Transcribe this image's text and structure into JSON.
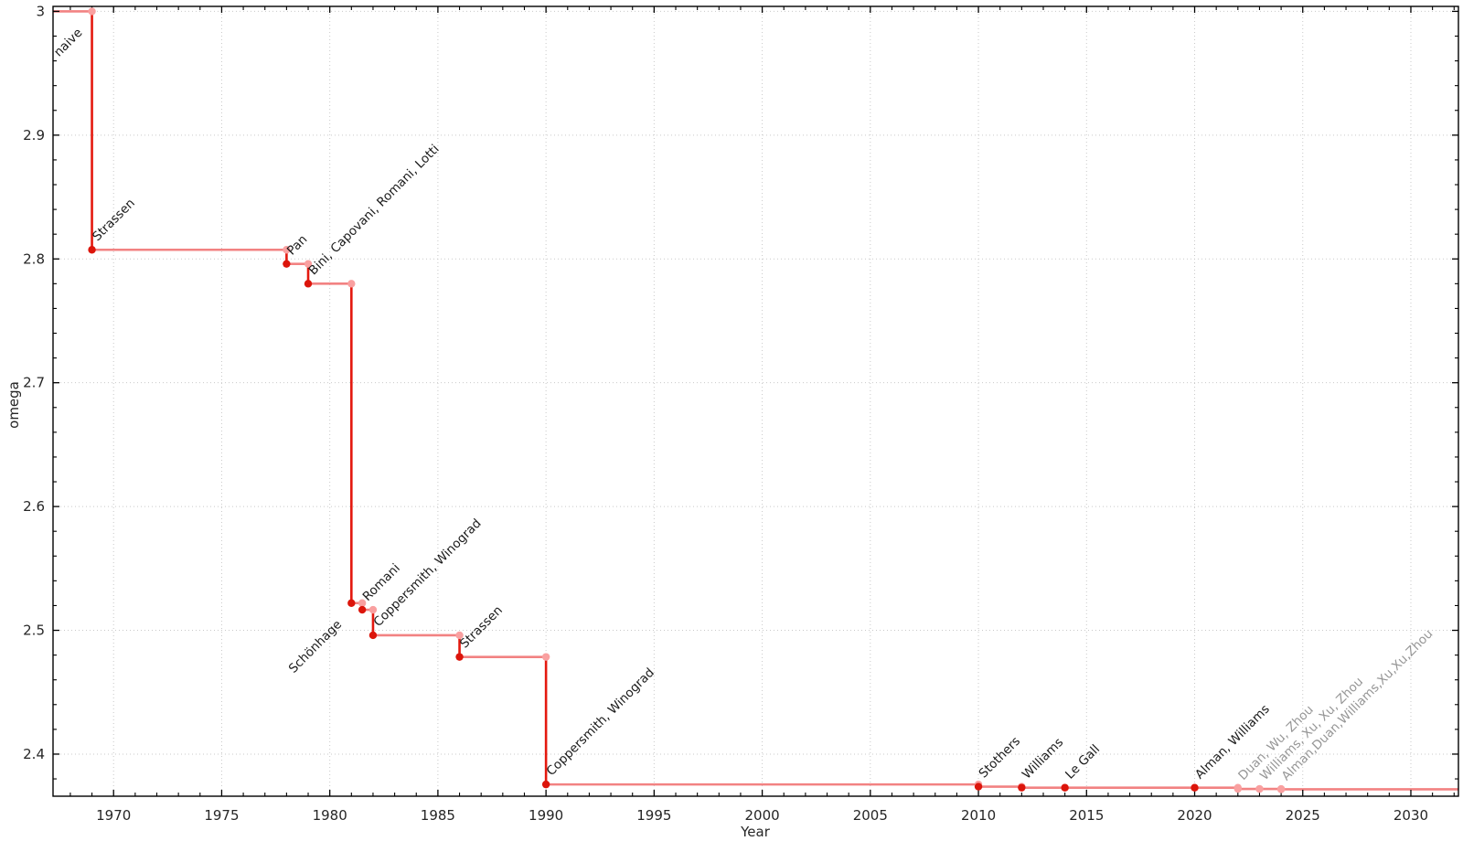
{
  "figure": {
    "background": "#ffffff",
    "description": "Step chart of best known exponent omega of matrix multiplication versus year"
  },
  "chart_data": {
    "type": "line",
    "line_shape": "step-post",
    "title": "",
    "xlabel": "Year",
    "ylabel": "omega",
    "xlim": [
      1967.2,
      2032.2
    ],
    "ylim": [
      2.366,
      3.004
    ],
    "x_major_ticks": [
      1970,
      1975,
      1980,
      1985,
      1990,
      1995,
      2000,
      2005,
      2010,
      2015,
      2020,
      2025,
      2030
    ],
    "x_minor_tick_step": 1,
    "y_major_ticks": [
      3,
      2.9,
      2.8,
      2.7,
      2.6,
      2.5,
      2.4
    ],
    "y_minor_tick_step": 0.02,
    "grid": "dotted-at-major-ticks",
    "legend": "none",
    "colors": {
      "step_line": "#f28282",
      "drop_line": "#e4190f",
      "record_marker": "#dc150b",
      "provisional_marker": "#f9a0a0",
      "corner_marker": "#f9a0a0",
      "label_black": "#1a1a1a",
      "label_gray": "#969696",
      "axis": "#000000",
      "grid_line": "#c9c9c9",
      "background": "#ffffff"
    },
    "points": [
      {
        "label": "naive",
        "year": null,
        "omega": 3,
        "marker": "none",
        "label_side": "below",
        "label_color": "black",
        "label_at_year": 1969
      },
      {
        "label": "Strassen",
        "year": 1969,
        "omega": 2.8074,
        "marker": "red",
        "label_side": "above",
        "label_color": "black"
      },
      {
        "label": "Pan",
        "year": 1978,
        "omega": 2.796,
        "marker": "red",
        "label_side": "above",
        "label_color": "black"
      },
      {
        "label": "Bini, Capovani, Romani, Lotti",
        "year": 1979,
        "omega": 2.78,
        "marker": "red",
        "label_side": "above",
        "label_color": "black"
      },
      {
        "label": "Schönhage",
        "year": 1981,
        "omega": 2.522,
        "marker": "red",
        "label_side": "below",
        "label_color": "black"
      },
      {
        "label": "Romani",
        "year": 1981.5,
        "omega": 2.5166,
        "marker": "red",
        "label_side": "above",
        "label_color": "black"
      },
      {
        "label": "Coppersmith, Winograd",
        "year": 1982,
        "omega": 2.496,
        "marker": "red",
        "label_side": "above",
        "label_color": "black"
      },
      {
        "label": "Strassen",
        "year": 1986,
        "omega": 2.4785,
        "marker": "red",
        "label_side": "above",
        "label_color": "black"
      },
      {
        "label": "Coppersmith, Winograd",
        "year": 1990,
        "omega": 2.3755,
        "marker": "red",
        "label_side": "above",
        "label_color": "black"
      },
      {
        "label": "Stothers",
        "year": 2010,
        "omega": 2.3737,
        "marker": "red",
        "label_side": "above",
        "label_color": "black"
      },
      {
        "label": "Williams",
        "year": 2012,
        "omega": 2.3729,
        "marker": "red",
        "label_side": "above",
        "label_color": "black"
      },
      {
        "label": "Le Gall",
        "year": 2014,
        "omega": 2.3728639,
        "marker": "red",
        "label_side": "above",
        "label_color": "black"
      },
      {
        "label": "Alman, Williams",
        "year": 2020,
        "omega": 2.3728596,
        "marker": "red",
        "label_side": "above",
        "label_color": "black"
      },
      {
        "label": "Duan, Wu, Zhou",
        "year": 2022,
        "omega": 2.37188,
        "marker": "pink",
        "label_side": "above",
        "label_color": "gray"
      },
      {
        "label": "Williams, Xu, Xu, Zhou",
        "year": 2023,
        "omega": 2.371866,
        "marker": "pink",
        "label_side": "above",
        "label_color": "gray"
      },
      {
        "label": "Alman,Duan,Williams,Xu,Xu,Zhou",
        "year": 2024,
        "omega": 2.371552,
        "marker": "pink",
        "label_side": "above",
        "label_color": "gray"
      }
    ]
  }
}
